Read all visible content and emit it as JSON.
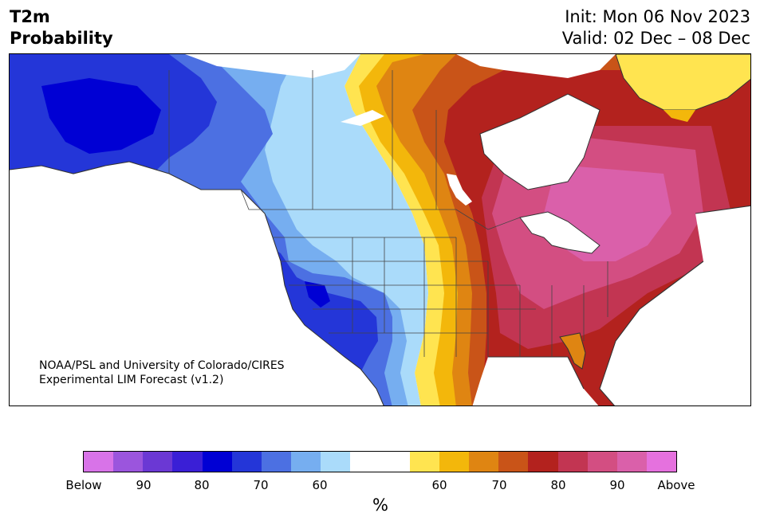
{
  "header": {
    "title_line1": "T2m",
    "title_line2": "Probability",
    "init": "Init: Mon 06 Nov 2023",
    "valid": "Valid: 02 Dec – 08 Dec"
  },
  "credit": {
    "line1": "NOAA/PSL and University of Colorado/CIRES",
    "line2": "Experimental LIM Forecast (v1.2)"
  },
  "colorbar": {
    "colors": [
      "#d873e8",
      "#9b55dd",
      "#6b38d4",
      "#3a1fd6",
      "#0000d4",
      "#2436d8",
      "#4c70e2",
      "#76aef0",
      "#aadbfa",
      "#ffffff",
      "#ffffff",
      "#ffe450",
      "#f3b70b",
      "#df8512",
      "#c95418",
      "#b3221e",
      "#c23552",
      "#d34e82",
      "#da60aa",
      "#e571de"
    ],
    "tick_labels": [
      "Below",
      "90",
      "80",
      "70",
      "60",
      "60",
      "70",
      "80",
      "90",
      "Above"
    ],
    "unit": "%"
  },
  "map": {
    "palette": {
      "below90": "#0000d4",
      "below80": "#2436d8",
      "below70": "#4c70e2",
      "below60": "#76aef0",
      "below50": "#aadbfa",
      "neutral": "#ffffff",
      "above50": "#ffe450",
      "above60": "#f3b70b",
      "above70": "#df8512",
      "above75": "#c95418",
      "above80": "#b3221e",
      "above85": "#c23552",
      "above90": "#d34e82",
      "above95": "#da60aa"
    }
  }
}
